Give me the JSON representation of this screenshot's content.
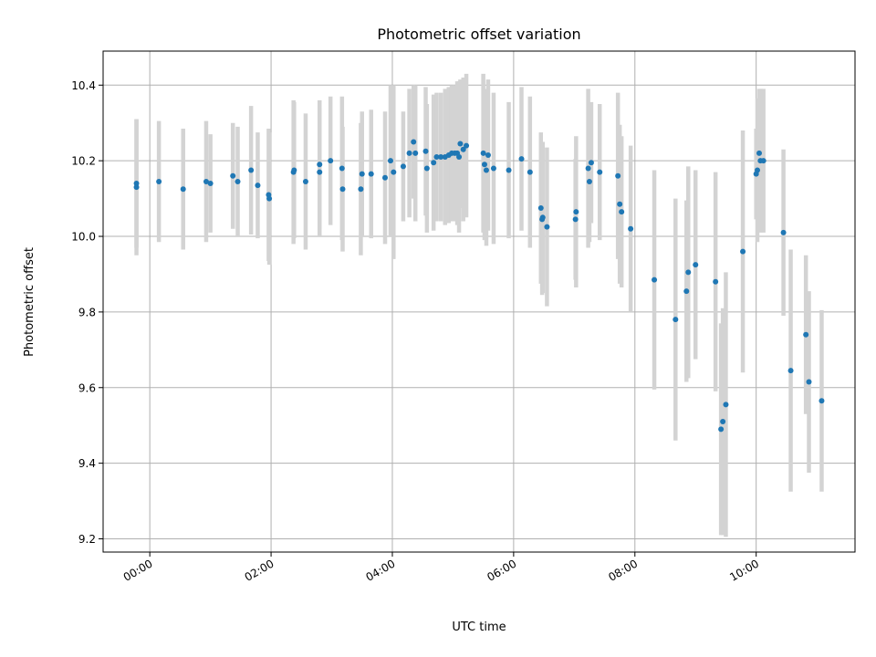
{
  "chart_data": {
    "type": "scatter",
    "title": "Photometric offset variation",
    "xlabel": "UTC time",
    "ylabel": "Photometric offset",
    "xlim": [
      -0.77,
      11.63
    ],
    "ylim": [
      9.165,
      10.49
    ],
    "xticks": [
      0,
      2,
      4,
      6,
      8,
      10
    ],
    "xtick_labels": [
      "00:00",
      "02:00",
      "04:00",
      "06:00",
      "08:00",
      "10:00"
    ],
    "yticks": [
      9.2,
      9.4,
      9.6,
      9.8,
      10.0,
      10.2,
      10.4
    ],
    "ytick_labels": [
      "9.2",
      "9.4",
      "9.6",
      "9.8",
      "10.0",
      "10.2",
      "10.4"
    ],
    "grid": true,
    "marker_color": "#1f77b4",
    "errorbar_color": "#d3d3d3",
    "series": [
      {
        "x": [
          -0.22,
          -0.22,
          0.15,
          0.55,
          0.93,
          1.0,
          1.37,
          1.45,
          1.67,
          1.78,
          1.96,
          1.97,
          2.37,
          2.38,
          2.57,
          2.8,
          2.8,
          2.98,
          3.17,
          3.18,
          3.48,
          3.5,
          3.65,
          3.88,
          3.97,
          4.02,
          4.18,
          4.28,
          4.35,
          4.38,
          4.55,
          4.57,
          4.68,
          4.73,
          4.8,
          4.87,
          4.93,
          4.98,
          5.03,
          5.07,
          5.1,
          5.12,
          5.17,
          5.22,
          5.5,
          5.52,
          5.55,
          5.58,
          5.67,
          5.92,
          6.13,
          6.27,
          6.45,
          6.47,
          6.48,
          6.55,
          7.02,
          7.03,
          7.23,
          7.25,
          7.28,
          7.42,
          7.72,
          7.75,
          7.78,
          7.93,
          8.32,
          8.67,
          8.85,
          8.88,
          9.0,
          9.33,
          9.42,
          9.45,
          9.5,
          9.78,
          10.0,
          10.02,
          10.05,
          10.07,
          10.12,
          10.45,
          10.57,
          10.82,
          10.87,
          11.08
        ],
        "y": [
          10.14,
          10.13,
          10.145,
          10.125,
          10.145,
          10.14,
          10.16,
          10.145,
          10.175,
          10.135,
          10.11,
          10.1,
          10.17,
          10.175,
          10.145,
          10.19,
          10.17,
          10.2,
          10.18,
          10.125,
          10.125,
          10.165,
          10.165,
          10.155,
          10.2,
          10.17,
          10.185,
          10.22,
          10.25,
          10.22,
          10.225,
          10.18,
          10.195,
          10.21,
          10.21,
          10.21,
          10.215,
          10.22,
          10.22,
          10.22,
          10.21,
          10.245,
          10.23,
          10.24,
          10.22,
          10.19,
          10.175,
          10.215,
          10.18,
          10.175,
          10.205,
          10.17,
          10.075,
          10.045,
          10.05,
          10.025,
          10.045,
          10.065,
          10.18,
          10.145,
          10.195,
          10.17,
          10.16,
          10.085,
          10.065,
          10.02,
          9.885,
          9.78,
          9.855,
          9.905,
          9.925,
          9.88,
          9.49,
          9.51,
          9.555,
          9.96,
          10.165,
          10.175,
          10.22,
          10.2,
          10.2,
          10.01,
          9.645,
          9.74,
          9.615,
          9.565
        ],
        "yerr": [
          0.17,
          0.18,
          0.16,
          0.16,
          0.16,
          0.13,
          0.14,
          0.145,
          0.17,
          0.14,
          0.175,
          0.175,
          0.19,
          0.18,
          0.18,
          0.17,
          0.17,
          0.17,
          0.19,
          0.165,
          0.175,
          0.165,
          0.17,
          0.175,
          0.2,
          0.23,
          0.145,
          0.17,
          0.15,
          0.18,
          0.17,
          0.17,
          0.18,
          0.17,
          0.17,
          0.18,
          0.18,
          0.18,
          0.18,
          0.19,
          0.2,
          0.17,
          0.19,
          0.19,
          0.21,
          0.2,
          0.2,
          0.2,
          0.2,
          0.18,
          0.19,
          0.2,
          0.2,
          0.2,
          0.2,
          0.21,
          0.16,
          0.2,
          0.21,
          0.16,
          0.16,
          0.18,
          0.22,
          0.21,
          0.2,
          0.22,
          0.29,
          0.32,
          0.24,
          0.28,
          0.25,
          0.29,
          0.28,
          0.3,
          0.35,
          0.32,
          0.12,
          0.19,
          0.17,
          0.19,
          0.19,
          0.22,
          0.32,
          0.21,
          0.24,
          0.24
        ]
      }
    ]
  }
}
